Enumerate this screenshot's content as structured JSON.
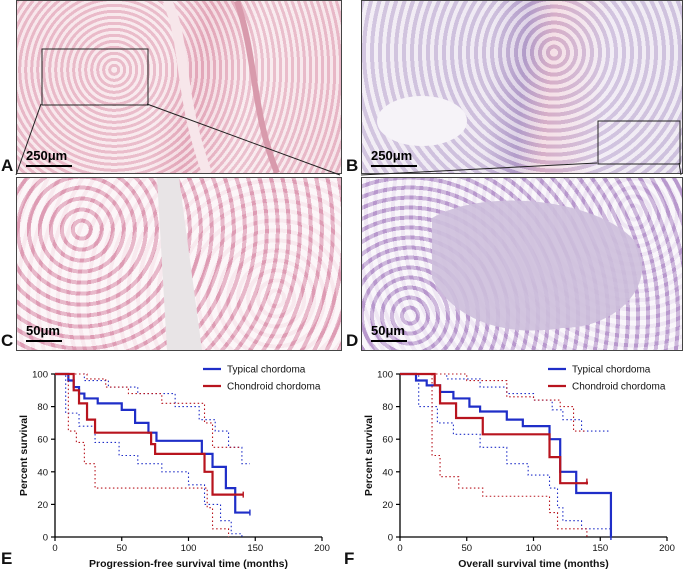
{
  "figure": {
    "panels": {
      "A": {
        "label": "A",
        "scale_bar": "250μm"
      },
      "B": {
        "label": "B",
        "scale_bar": "250μm"
      },
      "C": {
        "label": "C",
        "scale_bar": "50μm"
      },
      "D": {
        "label": "D",
        "scale_bar": "50μm"
      },
      "E": {
        "label": "E"
      },
      "F": {
        "label": "F"
      }
    }
  },
  "colors": {
    "typical": "#1f2ec8",
    "chondroid": "#b8141e",
    "stain_a": "#ecc4cf",
    "stain_b": "#ddd3e6"
  },
  "chart_data": [
    {
      "type": "line",
      "subtype": "kaplan-meier",
      "xlabel": "Progression-free survival time (months)",
      "ylabel": "Percent survival",
      "xlim": [
        0,
        200
      ],
      "ylim": [
        0,
        100
      ],
      "xticks": [
        0,
        50,
        100,
        150,
        200
      ],
      "yticks": [
        0,
        20,
        40,
        60,
        80,
        100
      ],
      "legend_position": "top-right",
      "series": [
        {
          "name": "Typical chordoma",
          "color": "#1f2ec8",
          "steps": [
            [
              0,
              100
            ],
            [
              10,
              96
            ],
            [
              14,
              92
            ],
            [
              18,
              88
            ],
            [
              22,
              85
            ],
            [
              32,
              82
            ],
            [
              50,
              78
            ],
            [
              60,
              70
            ],
            [
              70,
              64
            ],
            [
              76,
              59
            ],
            [
              110,
              51
            ],
            [
              118,
              43
            ],
            [
              128,
              30
            ],
            [
              135,
              15
            ],
            [
              146,
              15
            ]
          ],
          "ci_upper": [
            [
              0,
              100
            ],
            [
              14,
              100
            ],
            [
              22,
              96
            ],
            [
              40,
              92
            ],
            [
              62,
              88
            ],
            [
              90,
              80
            ],
            [
              108,
              72
            ],
            [
              120,
              65
            ],
            [
              130,
              55
            ],
            [
              140,
              45
            ],
            [
              146,
              45
            ]
          ],
          "ci_lower": [
            [
              0,
              100
            ],
            [
              8,
              76
            ],
            [
              18,
              68
            ],
            [
              30,
              58
            ],
            [
              48,
              50
            ],
            [
              62,
              45
            ],
            [
              80,
              40
            ],
            [
              100,
              32
            ],
            [
              112,
              20
            ],
            [
              124,
              10
            ],
            [
              132,
              2
            ],
            [
              140,
              0
            ]
          ]
        },
        {
          "name": "Chondroid chordoma",
          "color": "#b8141e",
          "steps": [
            [
              0,
              100
            ],
            [
              14,
              90
            ],
            [
              18,
              82
            ],
            [
              24,
              72
            ],
            [
              30,
              64
            ],
            [
              72,
              57
            ],
            [
              75,
              51
            ],
            [
              112,
              40
            ],
            [
              118,
              26
            ],
            [
              141,
              26
            ]
          ],
          "ci_upper": [
            [
              0,
              100
            ],
            [
              14,
              100
            ],
            [
              24,
              97
            ],
            [
              38,
              92
            ],
            [
              55,
              88
            ],
            [
              80,
              82
            ],
            [
              112,
              70
            ],
            [
              118,
              55
            ],
            [
              130,
              55
            ],
            [
              138,
              55
            ]
          ],
          "ci_lower": [
            [
              0,
              100
            ],
            [
              10,
              65
            ],
            [
              16,
              58
            ],
            [
              22,
              45
            ],
            [
              30,
              30
            ],
            [
              100,
              30
            ],
            [
              114,
              18
            ],
            [
              118,
              5
            ],
            [
              126,
              5
            ],
            [
              130,
              0
            ]
          ]
        }
      ]
    },
    {
      "type": "line",
      "subtype": "kaplan-meier",
      "xlabel": "Overall survival time (months)",
      "ylabel": "Percent survival",
      "xlim": [
        0,
        200
      ],
      "ylim": [
        0,
        100
      ],
      "xticks": [
        0,
        50,
        100,
        150,
        200
      ],
      "yticks": [
        0,
        20,
        40,
        60,
        80,
        100
      ],
      "legend_position": "top-right",
      "series": [
        {
          "name": "Typical chordoma",
          "color": "#1f2ec8",
          "steps": [
            [
              0,
              100
            ],
            [
              12,
              96
            ],
            [
              20,
              93
            ],
            [
              30,
              89
            ],
            [
              40,
              85
            ],
            [
              52,
              80
            ],
            [
              60,
              77
            ],
            [
              80,
              72
            ],
            [
              92,
              68
            ],
            [
              112,
              60
            ],
            [
              120,
              40
            ],
            [
              132,
              27
            ],
            [
              158,
              0
            ]
          ],
          "ci_upper": [
            [
              0,
              100
            ],
            [
              20,
              100
            ],
            [
              35,
              97
            ],
            [
              60,
              92
            ],
            [
              80,
              88
            ],
            [
              100,
              84
            ],
            [
              114,
              78
            ],
            [
              122,
              72
            ],
            [
              136,
              65
            ],
            [
              150,
              65
            ],
            [
              158,
              65
            ]
          ],
          "ci_lower": [
            [
              0,
              100
            ],
            [
              14,
              80
            ],
            [
              28,
              70
            ],
            [
              40,
              63
            ],
            [
              60,
              55
            ],
            [
              80,
              45
            ],
            [
              96,
              38
            ],
            [
              112,
              30
            ],
            [
              118,
              18
            ],
            [
              122,
              10
            ],
            [
              136,
              5
            ],
            [
              158,
              5
            ]
          ]
        },
        {
          "name": "Chondroid chordoma",
          "color": "#b8141e",
          "steps": [
            [
              0,
              100
            ],
            [
              26,
              93
            ],
            [
              30,
              82
            ],
            [
              42,
              73
            ],
            [
              62,
              63
            ],
            [
              84,
              63
            ],
            [
              112,
              49
            ],
            [
              120,
              33
            ],
            [
              140,
              34
            ]
          ],
          "ci_upper": [
            [
              0,
              100
            ],
            [
              26,
              100
            ],
            [
              50,
              96
            ],
            [
              80,
              86
            ],
            [
              100,
              84
            ],
            [
              120,
              80
            ],
            [
              130,
              65
            ],
            [
              140,
              65
            ]
          ],
          "ci_lower": [
            [
              0,
              100
            ],
            [
              24,
              50
            ],
            [
              30,
              37
            ],
            [
              44,
              30
            ],
            [
              62,
              25
            ],
            [
              90,
              25
            ],
            [
              112,
              15
            ],
            [
              118,
              5
            ],
            [
              130,
              5
            ],
            [
              140,
              0
            ]
          ]
        }
      ]
    }
  ]
}
